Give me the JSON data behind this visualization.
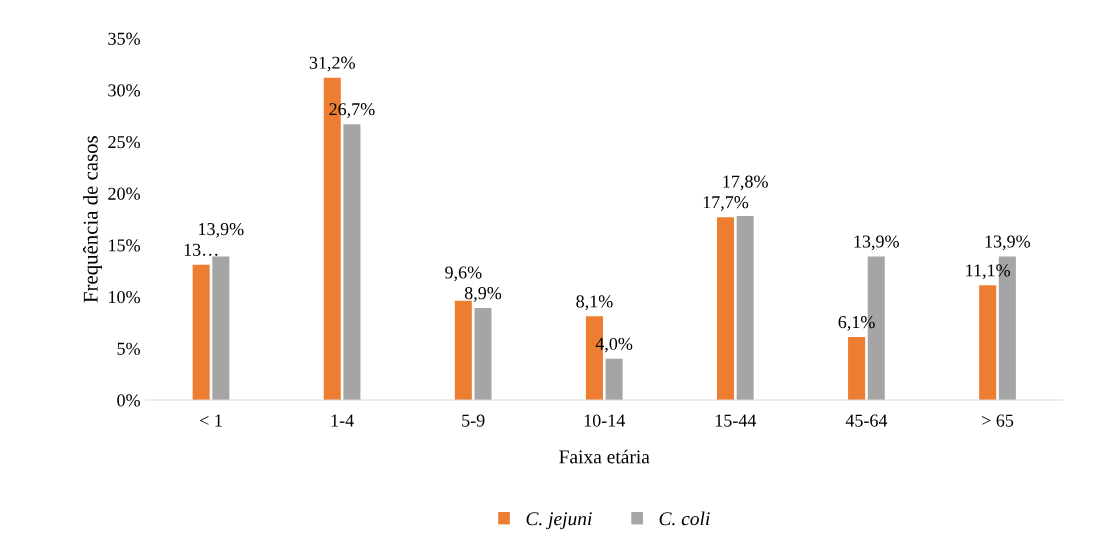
{
  "chart_data": {
    "type": "bar",
    "xlabel": "Faixa etária",
    "ylabel": "Frequência de casos",
    "categories": [
      "< 1",
      "1-4",
      "5-9",
      "10-14",
      "15-44",
      "45-64",
      "> 65"
    ],
    "series": [
      {
        "name": "C. jejuni",
        "color": "#ed7d31",
        "values": [
          13.1,
          31.2,
          9.6,
          8.1,
          17.7,
          6.1,
          11.1
        ],
        "value_labels": [
          "13…",
          "31,2%",
          "9,6%",
          "8,1%",
          "17,7%",
          "6,1%",
          "11,1%"
        ]
      },
      {
        "name": "C. coli",
        "color": "#a5a5a5",
        "values": [
          13.9,
          26.7,
          8.9,
          4.0,
          17.8,
          13.9,
          13.9
        ],
        "value_labels": [
          "13,9%",
          "26,7%",
          "8,9%",
          "4,0%",
          "17,8%",
          "13,9%",
          "13,9%"
        ]
      }
    ],
    "ylim": [
      0,
      35
    ],
    "yticks": [
      {
        "value": 0,
        "label": "0%"
      },
      {
        "value": 5,
        "label": "5%"
      },
      {
        "value": 10,
        "label": "10%"
      },
      {
        "value": 15,
        "label": "15%"
      },
      {
        "value": 20,
        "label": "20%"
      },
      {
        "value": 25,
        "label": "25%"
      },
      {
        "value": 30,
        "label": "30%"
      },
      {
        "value": 35,
        "label": "35%"
      }
    ],
    "grid": false,
    "legend": "bottom"
  }
}
